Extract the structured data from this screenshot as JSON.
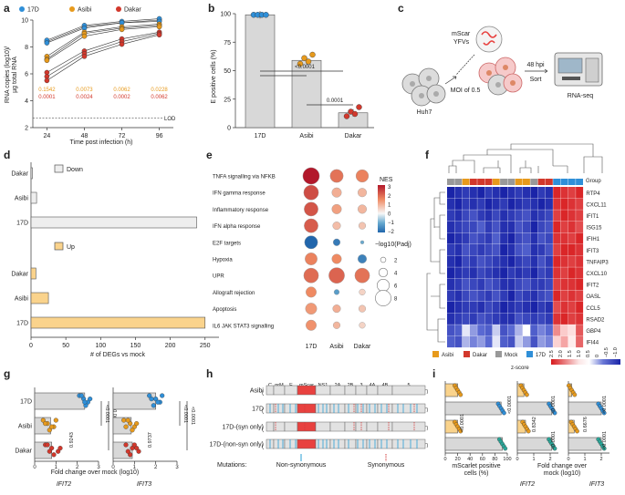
{
  "figure": {
    "panel_labels": [
      "a",
      "b",
      "c",
      "d",
      "e",
      "f",
      "g",
      "h",
      "i"
    ],
    "colors": {
      "v17D": "#2f8fd8",
      "asibi": "#e79a1c",
      "dakar": "#d2382c",
      "mock": "#999999",
      "bar": "#d8d8d8",
      "rna_red": "#e8413f",
      "down": "#eeeeee",
      "up": "#fad38c"
    }
  },
  "panel_a": {
    "legend": [
      "17D",
      "Asibi",
      "Dakar"
    ],
    "ylabel_line1": "RNA copies (log10)/",
    "ylabel_line2": "µg total RNA",
    "xlabel": "Time post infection (h)",
    "lod": "LOD",
    "pvals_asibi": [
      "0.1542",
      "0.0073",
      "0.0062",
      "0.0228"
    ],
    "pvals_dakar": [
      "0.0001",
      "0.0024",
      "0.0002",
      "0.0062"
    ],
    "chart_data": {
      "type": "line",
      "x": [
        24,
        48,
        72,
        96
      ],
      "ylim": [
        2,
        10
      ],
      "yticks": [
        "2",
        "4",
        "6",
        "8",
        "10"
      ],
      "xticks": [
        "24",
        "48",
        "72",
        "96"
      ],
      "lod_value": 2.7,
      "series": [
        {
          "name": "17D",
          "reps": [
            [
              8.4,
              9.5,
              9.8,
              10.0
            ],
            [
              8.5,
              9.6,
              9.9,
              10.1
            ],
            [
              8.3,
              9.4,
              9.8,
              9.9
            ]
          ]
        },
        {
          "name": "Asibi",
          "reps": [
            [
              7.3,
              9.1,
              9.5,
              9.7
            ],
            [
              7.1,
              9.0,
              9.4,
              9.6
            ],
            [
              7.0,
              8.8,
              9.3,
              9.5
            ]
          ]
        },
        {
          "name": "Dakar",
          "reps": [
            [
              6.1,
              7.7,
              8.6,
              9.1
            ],
            [
              5.8,
              7.5,
              8.4,
              9.0
            ],
            [
              5.5,
              7.3,
              8.2,
              8.9
            ]
          ]
        }
      ]
    }
  },
  "panel_b": {
    "ylabel": "E positive cells (%)",
    "p_17d_asibi": "<0.0001",
    "p_asibi_dakar": "0.0001",
    "chart_data": {
      "type": "bar",
      "categories": [
        "17D",
        "Asibi",
        "Dakar"
      ],
      "values": [
        99,
        59,
        13
      ],
      "points": [
        [
          99,
          99,
          99,
          99
        ],
        [
          56,
          61,
          58,
          64
        ],
        [
          10,
          14,
          12,
          18
        ]
      ],
      "ylim": [
        0,
        100
      ],
      "yticks": [
        "0",
        "25",
        "50",
        "75",
        "100"
      ]
    }
  },
  "panel_c": {
    "label_mscar": "mScar",
    "label_yfvs": "YFVs",
    "label_huh7": "Huh7",
    "label_moi": "MOI of 0.5",
    "label_48": "48 hpi",
    "label_sort": "Sort",
    "label_rnaseq": "RNA-seq"
  },
  "panel_d": {
    "label_down": "Down",
    "label_up": "Up",
    "xlabel": "# of DEGs vs mock",
    "chart_data": {
      "type": "bar",
      "categories": [
        "Dakar",
        "Asibi",
        "17D",
        "Dakar",
        "Asibi",
        "17D"
      ],
      "groups": [
        "Down",
        "Down",
        "Down",
        "Up",
        "Up",
        "Up"
      ],
      "values": [
        2,
        8,
        238,
        7,
        25,
        250
      ],
      "xlim": [
        0,
        270
      ],
      "xticks": [
        "0",
        "50",
        "100",
        "150",
        "200",
        "250"
      ]
    }
  },
  "panel_e": {
    "nes_title": "NES",
    "nes_ticks": [
      "3",
      "2",
      "1",
      "0",
      "−1",
      "−2"
    ],
    "padj_title": "−log10(Padj)",
    "size_ticks": [
      "2",
      "4",
      "6",
      "8"
    ],
    "chart_data": {
      "type": "scatter",
      "columns": [
        "17D",
        "Asibi",
        "Dakar"
      ],
      "pathways": [
        "TNFA signalling via NFKB",
        "IFN gamma response",
        "Inflammatory response",
        "IFN alpha response",
        "E2F targets",
        "Hypoxia",
        "UPR",
        "Allograft rejection",
        "Apoptosis",
        "IL6 JAK STAT3 signalling"
      ],
      "nes": [
        [
          3.0,
          1.8,
          1.6
        ],
        [
          2.3,
          1.0,
          0.9
        ],
        [
          2.2,
          1.2,
          0.9
        ],
        [
          2.1,
          0.8,
          0.7
        ],
        [
          -2.0,
          -1.7,
          -1.0
        ],
        [
          1.6,
          1.5,
          -1.6
        ],
        [
          1.9,
          2.0,
          1.8
        ],
        [
          1.5,
          -1.2,
          0.5
        ],
        [
          1.3,
          1.0,
          0.7
        ],
        [
          1.4,
          0.9,
          0.5
        ]
      ],
      "neglog10_padj": [
        8.5,
        6.5,
        6.2
      ],
      "sizes": [
        [
          8.5,
          6.5,
          6.2
        ],
        [
          7.5,
          4.5,
          4.0
        ],
        [
          7.0,
          4.5,
          4.0
        ],
        [
          7.0,
          3.5,
          3.0
        ],
        [
          6.5,
          3.0,
          1.0
        ],
        [
          6.0,
          4.5,
          4.0
        ],
        [
          7.5,
          8.0,
          7.5
        ],
        [
          5.0,
          2.0,
          2.5
        ],
        [
          5.5,
          3.5,
          3.0
        ],
        [
          5.0,
          3.0,
          2.5
        ]
      ]
    }
  },
  "panel_f": {
    "group_label": "Group",
    "zscore_label": "z-score",
    "legend": [
      "Asibi",
      "Dakar",
      "Mock",
      "17D"
    ],
    "chart_data": {
      "type": "heatmap",
      "genes": [
        "RTP4",
        "CXCL11",
        "IFIT1",
        "ISG15",
        "IFIH1",
        "IFIT3",
        "TNFAIP3",
        "CXCL10",
        "IFIT2",
        "OASL",
        "CCL5",
        "RSAD2",
        "GBP4",
        "IFI44"
      ],
      "group_order": [
        "Mock",
        "Mock",
        "Asibi",
        "Dakar",
        "Dakar",
        "Dakar",
        "Asibi",
        "Mock",
        "Mock",
        "Asibi",
        "Asibi",
        "Mock",
        "Dakar",
        "Dakar",
        "17D",
        "17D",
        "17D",
        "17D"
      ],
      "zscale_ticks": [
        "2.5",
        "2.0",
        "1.5",
        "1.0",
        "0.5",
        "0",
        "−0.5",
        "−1.0"
      ],
      "values": [
        [
          -1.0,
          -0.9,
          -0.8,
          -0.9,
          -1.0,
          -0.8,
          -0.9,
          -1.0,
          -0.9,
          -0.8,
          -0.9,
          -1.0,
          -0.8,
          -0.9,
          2.4,
          2.3,
          2.2,
          2.4
        ],
        [
          -0.9,
          -1.0,
          -0.8,
          -0.9,
          -0.8,
          -1.0,
          -0.9,
          -0.8,
          -1.0,
          -0.9,
          -0.8,
          -0.9,
          -1.0,
          -0.9,
          2.3,
          2.4,
          2.3,
          2.2
        ],
        [
          -0.8,
          -0.9,
          -0.7,
          -0.6,
          -0.8,
          -0.9,
          -0.7,
          -0.9,
          -0.8,
          -0.7,
          -0.6,
          -0.9,
          -0.8,
          -0.7,
          2.2,
          2.4,
          2.3,
          2.2
        ],
        [
          -0.9,
          -0.8,
          -0.7,
          -0.7,
          -0.5,
          -0.8,
          -0.6,
          -0.9,
          -0.9,
          -0.6,
          -0.7,
          -1.0,
          -0.7,
          -0.6,
          2.4,
          2.2,
          2.3,
          2.1
        ],
        [
          -1.0,
          -0.9,
          -0.8,
          -0.6,
          -0.7,
          -0.8,
          -0.5,
          -0.9,
          -1.0,
          -0.7,
          -0.6,
          -0.9,
          -0.6,
          -0.7,
          2.3,
          2.3,
          2.2,
          2.4
        ],
        [
          -0.8,
          -0.9,
          -0.6,
          -0.7,
          -0.8,
          -0.7,
          -0.6,
          -1.0,
          -0.9,
          -0.6,
          -0.5,
          -0.9,
          -0.8,
          -0.6,
          2.2,
          2.4,
          2.4,
          2.3
        ],
        [
          -0.9,
          -1.0,
          -0.7,
          -0.8,
          -0.6,
          -0.7,
          -0.8,
          -0.9,
          -1.0,
          -0.8,
          -0.7,
          -0.9,
          -0.6,
          -0.8,
          2.4,
          2.3,
          2.2,
          2.3
        ],
        [
          -1.0,
          -0.9,
          -0.8,
          -0.9,
          -0.7,
          -0.8,
          -0.9,
          -1.0,
          -0.8,
          -0.9,
          -0.8,
          -1.0,
          -0.7,
          -0.8,
          2.3,
          2.2,
          2.4,
          2.3
        ],
        [
          -0.9,
          -0.8,
          -0.6,
          -0.7,
          -0.8,
          -0.6,
          -0.7,
          -0.9,
          -0.9,
          -0.7,
          -0.6,
          -0.8,
          -0.8,
          -0.7,
          2.2,
          2.3,
          2.3,
          2.4
        ],
        [
          -0.8,
          -0.9,
          -0.7,
          -0.6,
          -0.7,
          -0.8,
          -0.6,
          -0.8,
          -1.0,
          -0.7,
          -0.8,
          -0.9,
          -0.7,
          -0.6,
          2.4,
          2.2,
          2.3,
          2.2
        ],
        [
          -1.0,
          -0.9,
          -0.8,
          -0.8,
          -0.9,
          -0.7,
          -0.8,
          -1.0,
          -0.9,
          -0.8,
          -0.9,
          -1.0,
          -0.8,
          -0.9,
          2.1,
          2.3,
          2.2,
          2.4
        ],
        [
          -0.9,
          -0.8,
          -0.7,
          -0.8,
          -0.6,
          -0.7,
          -0.8,
          -0.9,
          -0.9,
          -0.6,
          -0.7,
          -0.8,
          -0.7,
          -0.8,
          2.3,
          2.4,
          2.2,
          2.3
        ],
        [
          -0.6,
          -0.5,
          0.1,
          -0.2,
          -0.4,
          -0.5,
          0.0,
          -0.6,
          -0.4,
          -0.1,
          0.2,
          -0.5,
          -0.3,
          -0.4,
          1.6,
          1.0,
          0.7,
          2.0
        ],
        [
          -0.5,
          -0.6,
          -0.1,
          -0.3,
          -0.2,
          -0.4,
          0.1,
          -0.5,
          -0.6,
          0.0,
          -0.2,
          -0.6,
          -0.2,
          -0.3,
          0.9,
          1.4,
          0.5,
          1.9
        ]
      ]
    }
  },
  "panel_g": {
    "xlabel": "Fold change over mock (log10)",
    "gene1": "IFIT2",
    "gene2": "IFIT3",
    "p1": [
      "<0.0001",
      "<0.0001"
    ],
    "p2": [
      "<0.0001",
      "<0.0001"
    ],
    "ns1": "0.9243",
    "ns2": "0.9737",
    "chart_data": {
      "type": "bar",
      "categories": [
        "17D",
        "Asibi",
        "Dakar"
      ],
      "xlim": [
        0,
        3
      ],
      "xticks": [
        "0",
        "1",
        "2",
        "3"
      ],
      "series": [
        {
          "name": "IFIT2",
          "values": [
            2.35,
            0.75,
            0.8
          ],
          "points": [
            [
              2.1,
              2.3,
              2.5,
              2.4,
              2.2,
              2.6,
              2.35
            ],
            [
              0.4,
              0.6,
              0.9,
              0.7,
              1.0,
              0.5,
              0.8
            ],
            [
              0.5,
              0.8,
              1.1,
              0.9,
              0.6,
              1.2,
              0.7
            ]
          ]
        },
        {
          "name": "IFIT3",
          "values": [
            2.0,
            0.85,
            0.9
          ],
          "points": [
            [
              1.7,
              2.0,
              2.2,
              1.9,
              2.3,
              1.8,
              2.1
            ],
            [
              0.5,
              0.8,
              1.0,
              0.9,
              0.7,
              1.1,
              0.6
            ],
            [
              0.6,
              0.9,
              1.2,
              0.8,
              1.0,
              1.1,
              0.7
            ]
          ]
        }
      ]
    }
  },
  "panel_h": {
    "genes": [
      "C",
      "prM",
      "E",
      "mScar",
      "NS1",
      "2A",
      "2B",
      "3",
      "4A",
      "4B",
      "5"
    ],
    "rows": [
      "Asibi",
      "17D",
      "17D-(syn only)",
      "17D-(non-syn only)"
    ],
    "mutations_label": "Mutations:",
    "nonsyn_label": "Non-synonymous",
    "syn_label": "Synonymous"
  },
  "panel_i": {
    "xlabel1_line1": "mScarlet positive",
    "xlabel1_line2": "cells (%)",
    "xlabel2_line1": "Fold change over",
    "xlabel2_line2": "mock (log10)",
    "gene1": "IFIT2",
    "gene2": "IFIT3",
    "xticks1": [
      "0",
      "20",
      "40",
      "60",
      "80",
      "100"
    ],
    "xticks2": [
      "0",
      "1",
      "2"
    ],
    "p_col1": [
      "<0.0001",
      "<0.0001"
    ],
    "p_col2": [
      "<0.0001",
      "0.8342",
      "<0.0001"
    ],
    "p_col3": [
      "<0.0001",
      "0.6676",
      "<0.0001"
    ],
    "chart_data": {
      "type": "bar",
      "categories": [
        "Asibi",
        "17D",
        "17D-(syn only)",
        "17D-(non-syn only)"
      ],
      "series": [
        {
          "name": "mScarlet positive cells (%)",
          "values": [
            20,
            90,
            20,
            92
          ],
          "xlim": [
            0,
            100
          ]
        },
        {
          "name": "IFIT2",
          "values": [
            0.4,
            2.1,
            0.5,
            2.1
          ],
          "xlim": [
            0,
            2.5
          ]
        },
        {
          "name": "IFIT3",
          "values": [
            0.2,
            2.0,
            0.35,
            2.0
          ],
          "xlim": [
            0,
            2.5
          ]
        }
      ]
    }
  }
}
